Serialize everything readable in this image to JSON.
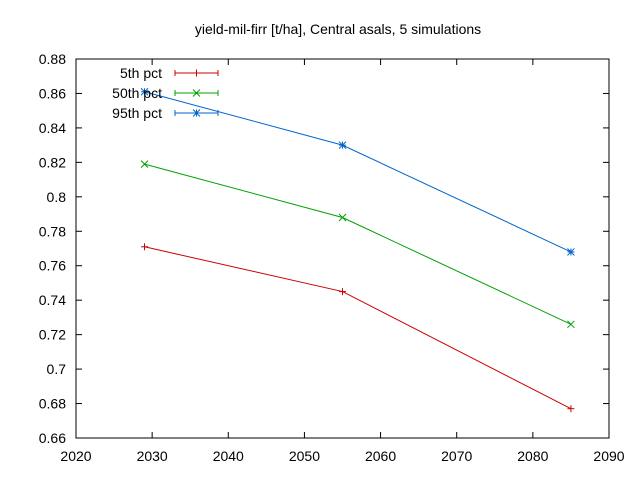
{
  "chart_data": {
    "type": "line",
    "title": "yield-mil-firr [t/ha], Central asals, 5 simulations",
    "xlabel": "",
    "ylabel": "",
    "xlim": [
      2020,
      2090
    ],
    "ylim": [
      0.66,
      0.88
    ],
    "x_ticks": [
      2020,
      2030,
      2040,
      2050,
      2060,
      2070,
      2080,
      2090
    ],
    "x_tick_labels": [
      "2020",
      "2030",
      "2040",
      "2050",
      "2060",
      "2070",
      "2080",
      "2090"
    ],
    "y_ticks": [
      0.66,
      0.68,
      0.7,
      0.72,
      0.74,
      0.76,
      0.78,
      0.8,
      0.82,
      0.84,
      0.86,
      0.88
    ],
    "y_tick_labels": [
      "0.66",
      "0.68",
      "0.7",
      "0.72",
      "0.74",
      "0.76",
      "0.78",
      "0.8",
      "0.82",
      "0.84",
      "0.86",
      "0.88"
    ],
    "grid": false,
    "legend_position": "top-left",
    "x": [
      2029,
      2055,
      2085
    ],
    "series": [
      {
        "name": "5th pct",
        "color": "#cc0000",
        "marker": "plus",
        "values": [
          0.771,
          0.745,
          0.677
        ]
      },
      {
        "name": "50th pct",
        "color": "#00a000",
        "marker": "cross",
        "values": [
          0.819,
          0.788,
          0.726
        ]
      },
      {
        "name": "95th pct",
        "color": "#0066cc",
        "marker": "star",
        "values": [
          0.861,
          0.83,
          0.768
        ]
      }
    ]
  }
}
